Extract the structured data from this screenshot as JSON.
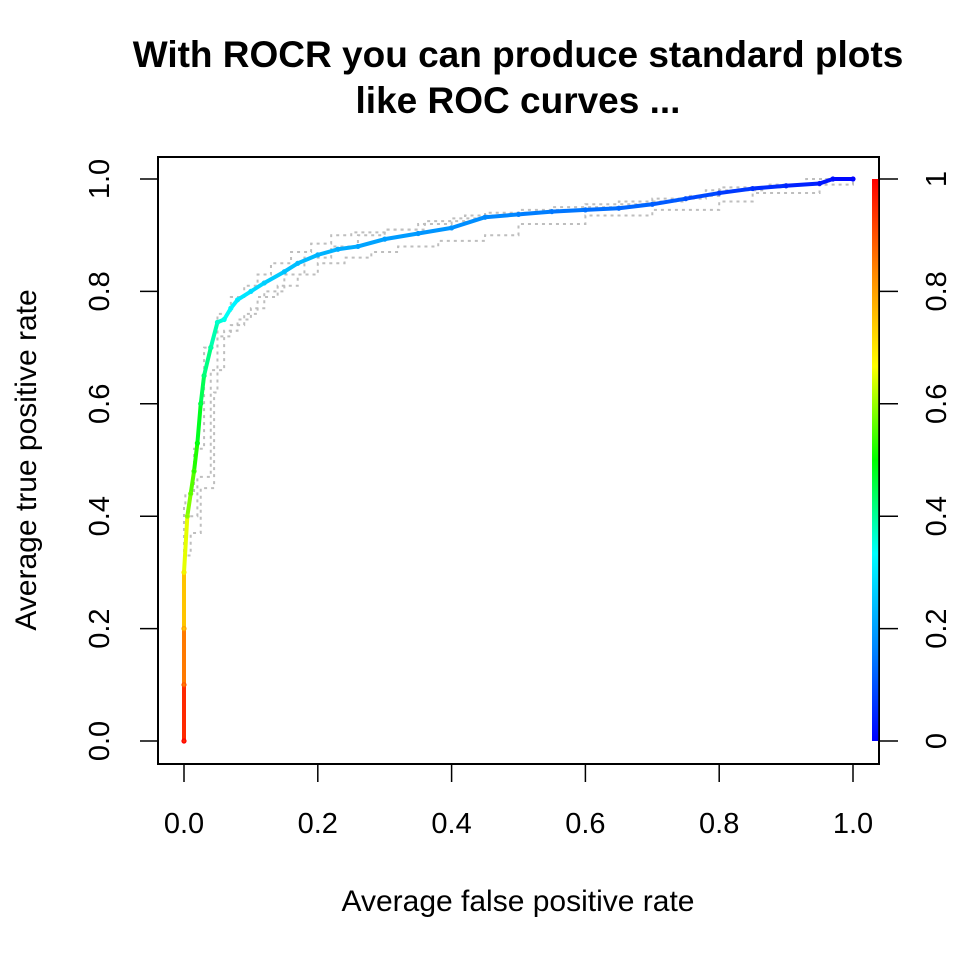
{
  "chart_data": {
    "type": "line",
    "title_lines": [
      "With ROCR you can produce standard plots",
      "like ROC curves ..."
    ],
    "xlabel": "Average false positive rate",
    "ylabel": "Average true positive rate",
    "xlim": [
      0,
      1
    ],
    "ylim": [
      0,
      1
    ],
    "x_ticks": [
      "0.0",
      "0.2",
      "0.4",
      "0.6",
      "0.8",
      "1.0"
    ],
    "y_ticks": [
      "0.0",
      "0.2",
      "0.4",
      "0.6",
      "0.8",
      "1.0"
    ],
    "grid": false,
    "colorbar": {
      "ticks": [
        "0",
        "0.2",
        "0.4",
        "0.6",
        "0.8",
        "1"
      ],
      "range": [
        0,
        1
      ],
      "gradient_colors": [
        "#0000ff",
        "#0088ff",
        "#00ffff",
        "#00ff00",
        "#ffff00",
        "#ff8800",
        "#ff0000"
      ]
    },
    "series": [
      {
        "style": "solid colorized (by cutoff)",
        "x": [
          0.0,
          0.0,
          0.0,
          0.0,
          0.005,
          0.01,
          0.015,
          0.02,
          0.025,
          0.03,
          0.04,
          0.05,
          0.06,
          0.07,
          0.08,
          0.1,
          0.12,
          0.15,
          0.17,
          0.2,
          0.23,
          0.26,
          0.3,
          0.35,
          0.4,
          0.45,
          0.5,
          0.55,
          0.6,
          0.65,
          0.7,
          0.75,
          0.8,
          0.85,
          0.9,
          0.95,
          0.97,
          1.0
        ],
        "y": [
          0.0,
          0.1,
          0.2,
          0.3,
          0.4,
          0.44,
          0.48,
          0.53,
          0.6,
          0.65,
          0.7,
          0.745,
          0.75,
          0.77,
          0.785,
          0.8,
          0.815,
          0.835,
          0.85,
          0.865,
          0.875,
          0.88,
          0.893,
          0.903,
          0.913,
          0.932,
          0.937,
          0.942,
          0.945,
          0.948,
          0.955,
          0.965,
          0.975,
          0.983,
          0.988,
          0.992,
          1.0,
          1.0
        ],
        "cutoff": [
          1.0,
          0.9,
          0.8,
          0.7,
          0.6,
          0.57,
          0.54,
          0.5,
          0.46,
          0.43,
          0.4,
          0.37,
          0.35,
          0.33,
          0.31,
          0.29,
          0.27,
          0.25,
          0.24,
          0.23,
          0.22,
          0.21,
          0.2,
          0.19,
          0.18,
          0.17,
          0.16,
          0.15,
          0.14,
          0.13,
          0.12,
          0.1,
          0.08,
          0.06,
          0.05,
          0.03,
          0.02,
          0.0
        ]
      },
      {
        "style": "dotted grey (individual runs)",
        "color": "#bebebe",
        "x": [
          0.0,
          0.0,
          0.005,
          0.02,
          0.04,
          0.06,
          0.08,
          0.1,
          0.12,
          0.15,
          0.18,
          0.22,
          0.26,
          0.3,
          0.35,
          0.4,
          0.45,
          0.55,
          0.65,
          0.75,
          0.8,
          0.9,
          0.96,
          1.0
        ],
        "y": [
          0.0,
          0.38,
          0.4,
          0.47,
          0.66,
          0.73,
          0.75,
          0.77,
          0.8,
          0.83,
          0.86,
          0.88,
          0.9,
          0.91,
          0.92,
          0.93,
          0.94,
          0.95,
          0.96,
          0.97,
          0.985,
          0.99,
          1.0,
          1.0
        ]
      },
      {
        "style": "dotted grey (individual runs)",
        "color": "#bebebe",
        "x": [
          0.0,
          0.0,
          0.01,
          0.025,
          0.045,
          0.05,
          0.07,
          0.09,
          0.11,
          0.14,
          0.17,
          0.2,
          0.24,
          0.28,
          0.32,
          0.38,
          0.45,
          0.5,
          0.6,
          0.7,
          0.8,
          0.85,
          0.95,
          1.0
        ],
        "y": [
          0.0,
          0.33,
          0.37,
          0.45,
          0.62,
          0.72,
          0.74,
          0.76,
          0.79,
          0.81,
          0.83,
          0.85,
          0.86,
          0.87,
          0.88,
          0.89,
          0.9,
          0.92,
          0.935,
          0.945,
          0.96,
          0.975,
          0.99,
          1.0
        ]
      },
      {
        "style": "dotted grey (individual runs)",
        "color": "#bebebe",
        "x": [
          0.0,
          0.0,
          0.002,
          0.015,
          0.03,
          0.05,
          0.07,
          0.09,
          0.11,
          0.13,
          0.16,
          0.19,
          0.22,
          0.25,
          0.3,
          0.36,
          0.42,
          0.5,
          0.6,
          0.7,
          0.78,
          0.87,
          0.93,
          1.0
        ],
        "y": [
          0.0,
          0.42,
          0.44,
          0.52,
          0.7,
          0.76,
          0.79,
          0.81,
          0.83,
          0.85,
          0.87,
          0.885,
          0.9,
          0.905,
          0.91,
          0.925,
          0.935,
          0.945,
          0.955,
          0.965,
          0.98,
          0.99,
          1.0,
          1.0
        ]
      }
    ]
  }
}
